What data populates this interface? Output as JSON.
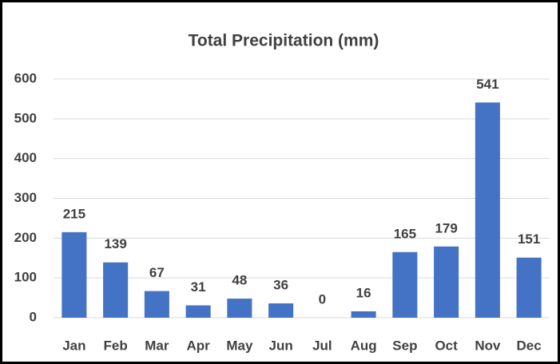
{
  "chart_data": {
    "type": "bar",
    "title": "Total Precipitation (mm)",
    "categories": [
      "Jan",
      "Feb",
      "Mar",
      "Apr",
      "May",
      "Jun",
      "Jul",
      "Aug",
      "Sep",
      "Oct",
      "Nov",
      "Dec"
    ],
    "values": [
      215,
      139,
      67,
      31,
      48,
      36,
      0,
      16,
      165,
      179,
      541,
      151
    ],
    "color": "#4472c4",
    "ylim": [
      0,
      600
    ],
    "yticks": [
      0,
      100,
      200,
      300,
      400,
      500,
      600
    ],
    "grid": true
  }
}
